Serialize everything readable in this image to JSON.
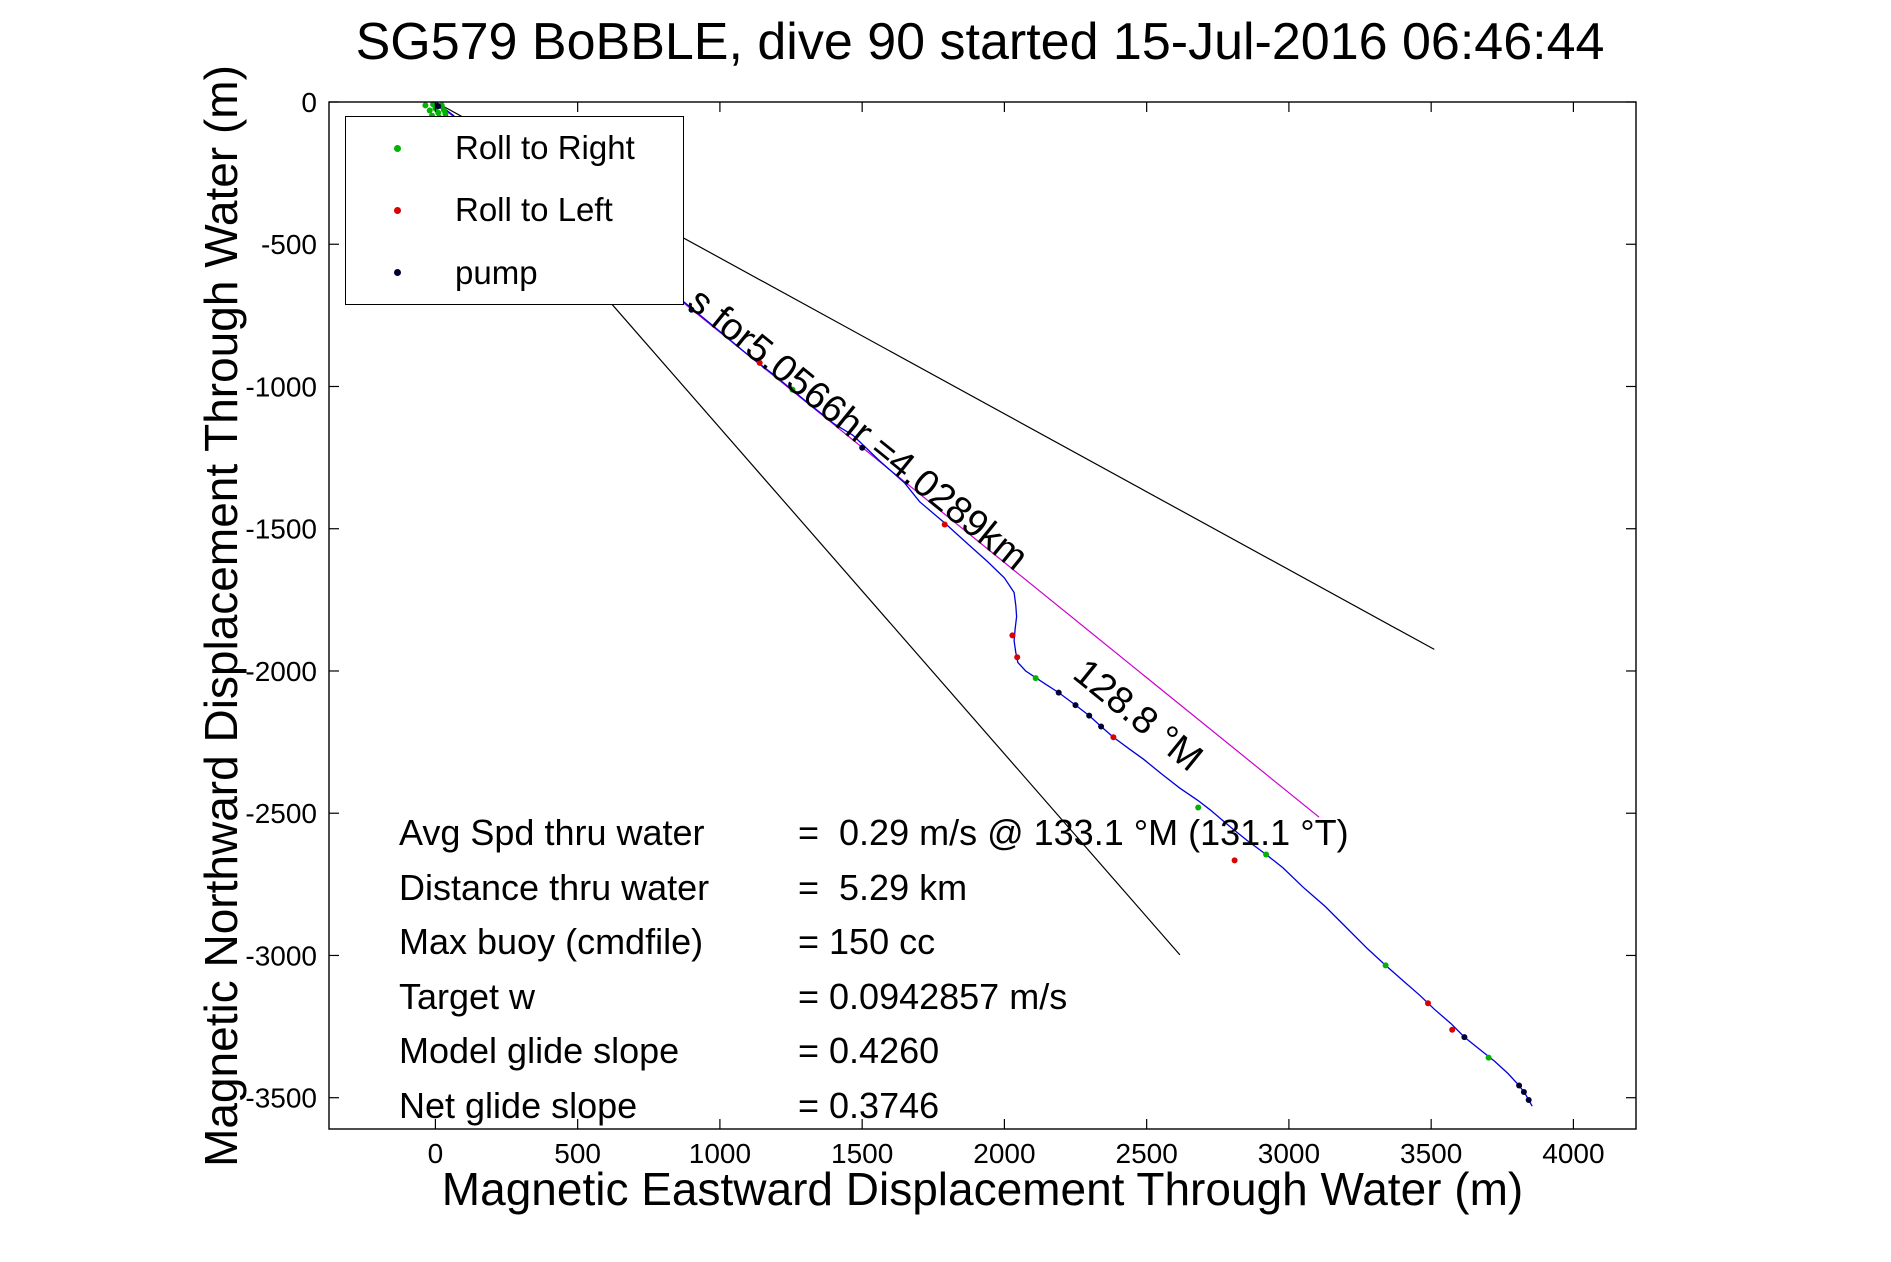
{
  "legend": {
    "items": [
      {
        "label": "Roll to Right",
        "color": "#00b400"
      },
      {
        "label": "Roll to Left",
        "color": "#dd0000"
      },
      {
        "label": "pump",
        "color": "#000033"
      }
    ]
  },
  "stats": {
    "rows": [
      {
        "label": "Avg Spd thru water",
        "value": "=  0.29 m/s @ 133.1 °M (131.1 °T)"
      },
      {
        "label": "Distance thru water",
        "value": "=  5.29 km"
      },
      {
        "label": "Max buoy (cmdfile)",
        "value": "= 150 cc"
      },
      {
        "label": "Target w",
        "value": "= 0.0942857 m/s"
      },
      {
        "label": "Model glide slope",
        "value": "= 0.4260"
      },
      {
        "label": "Net glide slope",
        "value": "= 0.3746"
      }
    ]
  },
  "chart_data": {
    "type": "line",
    "title": "SG579 BoBBLE, dive 90 started 15-Jul-2016 06:46:44",
    "xlabel": "Magnetic Eastward Displacement Through Water (m)",
    "ylabel": "Magnetic Northward Displacement Through Water (m)",
    "xlim": [
      -374,
      4220
    ],
    "ylim": [
      -3610,
      0
    ],
    "xticks": [
      0,
      500,
      1000,
      1500,
      2000,
      2500,
      3000,
      3500,
      4000
    ],
    "yticks": [
      0,
      -500,
      -1000,
      -1500,
      -2000,
      -2500,
      -3000,
      -3500
    ],
    "grid": false,
    "legend_position": "upper-left",
    "track": {
      "name": "glider-dive-track",
      "color": "#0000dd",
      "points": [
        [
          0,
          0
        ],
        [
          60,
          -45
        ],
        [
          150,
          -120
        ],
        [
          260,
          -210
        ],
        [
          380,
          -310
        ],
        [
          500,
          -410
        ],
        [
          620,
          -510
        ],
        [
          740,
          -610
        ],
        [
          851,
          -684
        ],
        [
          980,
          -790
        ],
        [
          1100,
          -890
        ],
        [
          1191,
          -960
        ],
        [
          1300,
          -1050
        ],
        [
          1400,
          -1130
        ],
        [
          1468,
          -1172
        ],
        [
          1560,
          -1260
        ],
        [
          1650,
          -1340
        ],
        [
          1702,
          -1405
        ],
        [
          1790,
          -1480
        ],
        [
          1872,
          -1554
        ],
        [
          1940,
          -1615
        ],
        [
          2000,
          -1673
        ],
        [
          2034,
          -1724
        ],
        [
          2040,
          -1770
        ],
        [
          2043,
          -1809
        ],
        [
          2038,
          -1850
        ],
        [
          2034,
          -1894
        ],
        [
          2040,
          -1935
        ],
        [
          2047,
          -1970
        ],
        [
          2075,
          -2000
        ],
        [
          2106,
          -2021
        ],
        [
          2150,
          -2050
        ],
        [
          2191,
          -2076
        ],
        [
          2250,
          -2120
        ],
        [
          2298,
          -2157
        ],
        [
          2340,
          -2195
        ],
        [
          2383,
          -2233
        ],
        [
          2440,
          -2275
        ],
        [
          2489,
          -2310
        ],
        [
          2550,
          -2360
        ],
        [
          2617,
          -2412
        ],
        [
          2680,
          -2455
        ],
        [
          2723,
          -2488
        ],
        [
          2790,
          -2545
        ],
        [
          2851,
          -2594
        ],
        [
          2920,
          -2645
        ],
        [
          2979,
          -2692
        ],
        [
          3050,
          -2760
        ],
        [
          3128,
          -2828
        ],
        [
          3200,
          -2900
        ],
        [
          3277,
          -2977
        ],
        [
          3340,
          -3035
        ],
        [
          3404,
          -3091
        ],
        [
          3460,
          -3140
        ],
        [
          3511,
          -3189
        ],
        [
          3570,
          -3240
        ],
        [
          3617,
          -3287
        ],
        [
          3670,
          -3330
        ],
        [
          3723,
          -3372
        ],
        [
          3770,
          -3415
        ],
        [
          3809,
          -3457
        ],
        [
          3830,
          -3485
        ],
        [
          3843,
          -3508
        ],
        [
          3855,
          -3530
        ]
      ]
    },
    "reference_lines": [
      {
        "name": "bearing-envelope-upper-line",
        "color": "#000000",
        "from": [
          0,
          0
        ],
        "to": [
          3511,
          -1924
        ]
      },
      {
        "name": "bearing-envelope-lower-line",
        "color": "#000000",
        "from": [
          0,
          0
        ],
        "to": [
          2617,
          -2998
        ]
      },
      {
        "name": "displacement-vector-line",
        "color": "#cc00cc",
        "from": [
          0,
          0
        ],
        "to": [
          3106,
          -2514
        ]
      }
    ],
    "events": [
      {
        "name": "Roll to Right",
        "color": "#00b400",
        "points": [
          [
            -35,
            -12
          ],
          [
            -20,
            -30
          ],
          [
            -8,
            -8
          ],
          [
            0,
            -22
          ],
          [
            10,
            -38
          ],
          [
            22,
            -12
          ],
          [
            30,
            -28
          ],
          [
            14,
            -55
          ],
          [
            -12,
            -48
          ],
          [
            25,
            -60
          ],
          [
            5,
            -72
          ],
          [
            35,
            -42
          ],
          [
            18,
            -85
          ],
          [
            -2,
            -95
          ],
          [
            1255,
            -1011
          ],
          [
            2110,
            -2025
          ],
          [
            2681,
            -2480
          ],
          [
            2920,
            -2645
          ],
          [
            3340,
            -3035
          ],
          [
            3702,
            -3359
          ]
        ]
      },
      {
        "name": "Roll to Left",
        "color": "#dd0000",
        "points": [
          [
            1140,
            -917
          ],
          [
            1790,
            -1485
          ],
          [
            2028,
            -1875
          ],
          [
            2045,
            -1952
          ],
          [
            2383,
            -2233
          ],
          [
            2809,
            -2666
          ],
          [
            3489,
            -3168
          ],
          [
            3574,
            -3261
          ]
        ]
      },
      {
        "name": "pump",
        "color": "#000033",
        "points": [
          [
            10,
            -15
          ],
          [
            900,
            -730
          ],
          [
            1500,
            -1215
          ],
          [
            2191,
            -2076
          ],
          [
            2250,
            -2120
          ],
          [
            2298,
            -2157
          ],
          [
            2340,
            -2195
          ],
          [
            3617,
            -3287
          ],
          [
            3809,
            -3457
          ],
          [
            3826,
            -3480
          ],
          [
            3843,
            -3508
          ]
        ]
      }
    ],
    "annotations": [
      {
        "text": "s for5.0566hr =4.0289km",
        "x": 880,
        "y": -715,
        "rotation": 39
      },
      {
        "text": "128.8 °M",
        "x": 2234,
        "y": -2021,
        "rotation": 39
      }
    ]
  }
}
